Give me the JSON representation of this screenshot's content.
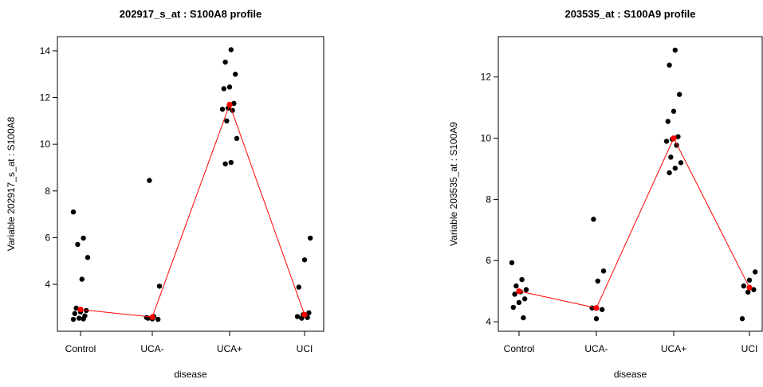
{
  "chart_data": [
    {
      "type": "strip",
      "title": "202917_s_at : S100A8 profile",
      "x_label": "disease",
      "y_label": "Variable 202917_s_at : S100A8",
      "categories": [
        "Control",
        "UCA-",
        "UCA+",
        "UCI"
      ],
      "points": [
        [
          7.1,
          5.98,
          5.71,
          5.15,
          4.22,
          2.98,
          2.88,
          2.82,
          2.75,
          2.65,
          2.55,
          2.5,
          2.52
        ],
        [
          8.45,
          3.92,
          2.62,
          2.55,
          2.5,
          2.52,
          2.58
        ],
        [
          14.05,
          13.52,
          13.0,
          12.45,
          12.38,
          11.75,
          11.55,
          11.5,
          11.45,
          11.0,
          10.25,
          9.22,
          9.16
        ],
        [
          5.98,
          5.05,
          3.88,
          2.78,
          2.7,
          2.62,
          2.58,
          2.55
        ]
      ],
      "means": [
        2.92,
        2.6,
        11.7,
        2.7
      ],
      "point_color": "#000000",
      "mean_color": "#ff0000",
      "ylim": [
        1.99,
        14.61
      ],
      "yticks": [
        4,
        6,
        8,
        10,
        12,
        14
      ]
    },
    {
      "type": "strip",
      "title": "203535_at : S100A9 profile",
      "x_label": "disease",
      "y_label": "Variable 203535_at : S100A9",
      "categories": [
        "Control",
        "UCA-",
        "UCA+",
        "UCI"
      ],
      "points": [
        [
          5.93,
          5.38,
          5.17,
          5.05,
          4.98,
          4.9,
          4.75,
          4.63,
          4.47,
          4.13
        ],
        [
          7.35,
          5.66,
          5.33,
          4.45,
          4.4,
          4.1
        ],
        [
          12.88,
          12.39,
          11.43,
          10.88,
          10.55,
          10.05,
          9.97,
          9.9,
          9.77,
          9.38,
          9.2,
          9.02,
          8.87
        ],
        [
          5.63,
          5.36,
          5.17,
          5.05,
          4.97,
          4.1
        ]
      ],
      "means": [
        5.0,
        4.45,
        10.0,
        5.12
      ],
      "point_color": "#000000",
      "mean_color": "#ff0000",
      "ylim": [
        3.69,
        13.32
      ],
      "yticks": [
        4,
        6,
        8,
        10,
        12
      ]
    }
  ]
}
